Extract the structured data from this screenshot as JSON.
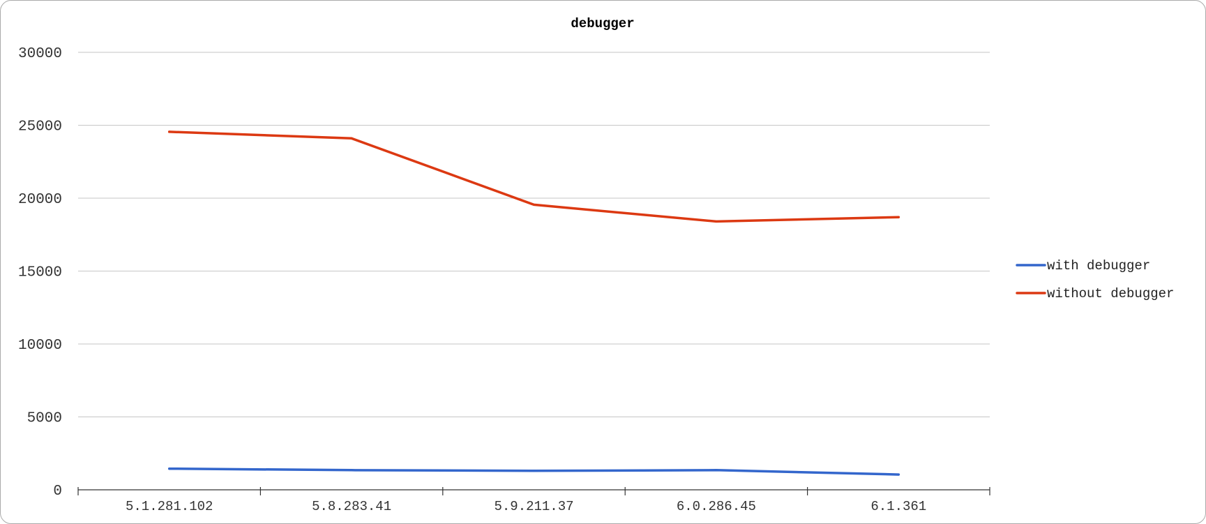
{
  "chart_data": {
    "type": "line",
    "title": "debugger",
    "xlabel": "",
    "ylabel": "",
    "categories": [
      "5.1.281.102",
      "5.8.283.41",
      "5.9.211.37",
      "6.0.286.45",
      "6.1.361"
    ],
    "ylim": [
      0,
      30000
    ],
    "yticks": [
      0,
      5000,
      10000,
      15000,
      20000,
      25000,
      30000
    ],
    "grid": true,
    "legend_position": "right",
    "series": [
      {
        "name": "with debugger",
        "color": "#3366cc",
        "values": [
          1450,
          1350,
          1300,
          1350,
          1050
        ]
      },
      {
        "name": "without debugger",
        "color": "#dc3912",
        "values": [
          24550,
          24100,
          19550,
          18400,
          18700
        ]
      }
    ]
  }
}
